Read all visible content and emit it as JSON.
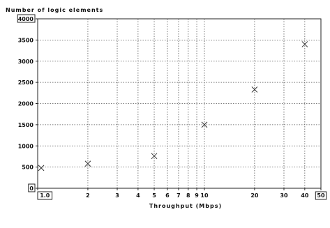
{
  "chart_data": {
    "type": "scatter",
    "title": "",
    "ylabel": "Number of logic elements",
    "xlabel": "Throughput (Mbps)",
    "x_scale": "log",
    "xlim": [
      1.0,
      50
    ],
    "ylim": [
      0,
      4000
    ],
    "grid": true,
    "x_ticks": [
      {
        "value": 1.0,
        "label": "1.0",
        "boxed": true
      },
      {
        "value": 2,
        "label": "2",
        "boxed": false
      },
      {
        "value": 3,
        "label": "3",
        "boxed": false
      },
      {
        "value": 4,
        "label": "4",
        "boxed": false
      },
      {
        "value": 5,
        "label": "5",
        "boxed": false
      },
      {
        "value": 6,
        "label": "6",
        "boxed": false
      },
      {
        "value": 7,
        "label": "7",
        "boxed": false
      },
      {
        "value": 8,
        "label": "8",
        "boxed": false
      },
      {
        "value": 9,
        "label": "9",
        "boxed": false
      },
      {
        "value": 10,
        "label": "10",
        "boxed": false
      },
      {
        "value": 20,
        "label": "20",
        "boxed": false
      },
      {
        "value": 30,
        "label": "30",
        "boxed": false
      },
      {
        "value": 40,
        "label": "40",
        "boxed": false
      },
      {
        "value": 50,
        "label": "50",
        "boxed": true
      }
    ],
    "y_ticks": [
      {
        "value": 0,
        "label": "0",
        "boxed": true
      },
      {
        "value": 500,
        "label": "500",
        "boxed": false
      },
      {
        "value": 1000,
        "label": "1000",
        "boxed": false
      },
      {
        "value": 1500,
        "label": "1500",
        "boxed": false
      },
      {
        "value": 2000,
        "label": "2000",
        "boxed": false
      },
      {
        "value": 2500,
        "label": "2500",
        "boxed": false
      },
      {
        "value": 3000,
        "label": "3000",
        "boxed": false
      },
      {
        "value": 3500,
        "label": "3500",
        "boxed": false
      },
      {
        "value": 4000,
        "label": "4000",
        "boxed": true
      }
    ],
    "series": [
      {
        "marker": "x",
        "points": [
          {
            "x": 1.05,
            "y": 480
          },
          {
            "x": 2,
            "y": 580
          },
          {
            "x": 5,
            "y": 760
          },
          {
            "x": 10,
            "y": 1500
          },
          {
            "x": 20,
            "y": 2330
          },
          {
            "x": 40,
            "y": 3400
          }
        ]
      }
    ]
  }
}
